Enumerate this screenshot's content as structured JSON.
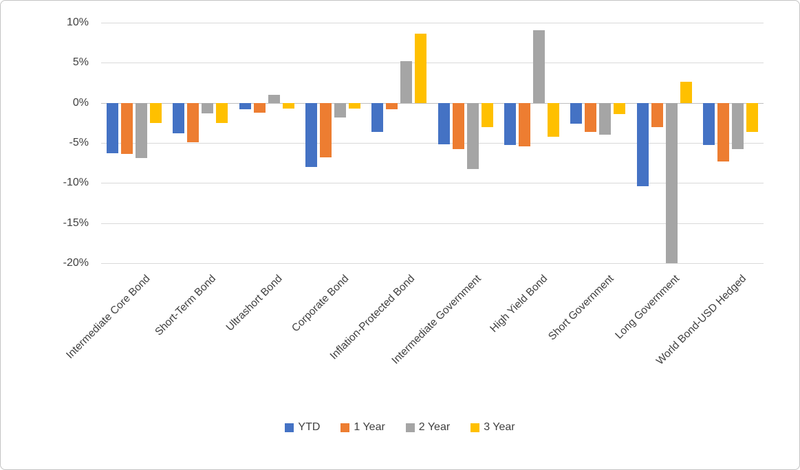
{
  "chart_data": {
    "type": "bar",
    "title": "",
    "categories": [
      "Intermediate Core Bond",
      "Short-Term Bond",
      "Ultrashort Bond",
      "Corporate Bond",
      "Inflation-Protected Bond",
      "Intermediate Government",
      "High Yield Bond",
      "Short Government",
      "Long Government",
      "World Bond-USD Hedged"
    ],
    "series": [
      {
        "name": "YTD",
        "color": "#4472C4",
        "values": [
          -6.3,
          -3.8,
          -0.8,
          -8.0,
          -3.6,
          -5.2,
          -5.3,
          -2.6,
          -10.4,
          -5.3
        ]
      },
      {
        "name": "1 Year",
        "color": "#ED7D31",
        "values": [
          -6.4,
          -4.9,
          -1.2,
          -6.8,
          -0.8,
          -5.8,
          -5.4,
          -3.6,
          -3.0,
          -7.3
        ]
      },
      {
        "name": "2 Year",
        "color": "#A5A5A5",
        "values": [
          -6.9,
          -1.3,
          1.0,
          -1.8,
          5.2,
          -8.3,
          9.1,
          -4.0,
          -20.0,
          -5.8
        ]
      },
      {
        "name": "3 Year",
        "color": "#FFC000",
        "values": [
          -2.5,
          -2.5,
          -0.7,
          -0.7,
          8.6,
          -3.0,
          -4.2,
          -1.4,
          2.6,
          -3.6
        ]
      }
    ],
    "y_axis": {
      "tick_labels": [
        "10%",
        "5%",
        "0%",
        "-5%",
        "-10%",
        "-15%",
        "-20%"
      ],
      "tick_values": [
        10,
        5,
        0,
        -5,
        -10,
        -15,
        -20
      ],
      "max": 10,
      "min": -20
    },
    "xlabel": "",
    "ylabel": "",
    "grid": true,
    "legend_position": "bottom",
    "background": "#ffffff"
  }
}
